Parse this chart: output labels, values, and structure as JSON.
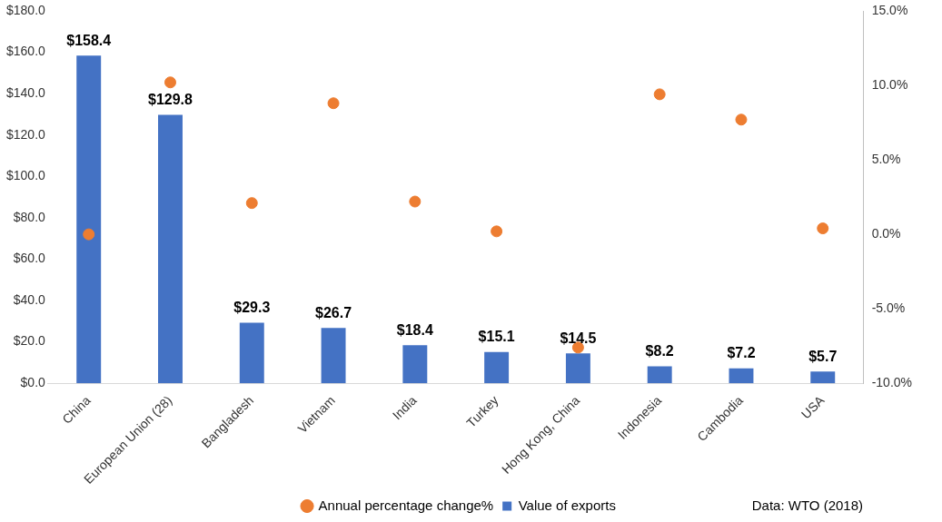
{
  "chart_data": {
    "type": "bar",
    "categories": [
      "China",
      "European Union (28)",
      "Bangladesh",
      "Vietnam",
      "India",
      "Turkey",
      "Hong Kong, China",
      "Indonesia",
      "Cambodia",
      "USA"
    ],
    "series": [
      {
        "name": "Value of exports",
        "color": "#4472c4",
        "values": [
          158.4,
          129.8,
          29.3,
          26.7,
          18.4,
          15.1,
          14.5,
          8.2,
          7.2,
          5.7
        ],
        "value_labels": [
          "$158.4",
          "$129.8",
          "$29.3",
          "$26.7",
          "$18.4",
          "$15.1",
          "$14.5",
          "$8.2",
          "$7.2",
          "$5.7"
        ]
      },
      {
        "name": "Annual percentage change%",
        "type": "scatter",
        "axis": "y2",
        "marker": "circle",
        "color": "#ed7d31",
        "values": [
          0.0,
          10.2,
          2.1,
          8.8,
          2.2,
          0.2,
          -7.6,
          9.4,
          7.7,
          0.4
        ]
      }
    ],
    "ylim": [
      0,
      180
    ],
    "yticks": [
      {
        "value": 0,
        "label": "$0.0"
      },
      {
        "value": 20,
        "label": "$20.0"
      },
      {
        "value": 40,
        "label": "$40.0"
      },
      {
        "value": 60,
        "label": "$60.0"
      },
      {
        "value": 80,
        "label": "$80.0"
      },
      {
        "value": 100,
        "label": "$100.0"
      },
      {
        "value": 120,
        "label": "$120.0"
      },
      {
        "value": 140,
        "label": "$140.0"
      },
      {
        "value": 160,
        "label": "$160.0"
      },
      {
        "value": 180,
        "label": "$180.0"
      }
    ],
    "y2lim": [
      -10,
      15
    ],
    "y2ticks": [
      {
        "value": -10,
        "label": "-10.0%"
      },
      {
        "value": -5,
        "label": "-5.0%"
      },
      {
        "value": 0,
        "label": "0.0%"
      },
      {
        "value": 5,
        "label": "5.0%"
      },
      {
        "value": 10,
        "label": "10.0%"
      },
      {
        "value": 15,
        "label": "15.0%"
      }
    ],
    "grid": false,
    "legend": "bottom",
    "annotations": [
      "Data: WTO (2018)"
    ]
  }
}
